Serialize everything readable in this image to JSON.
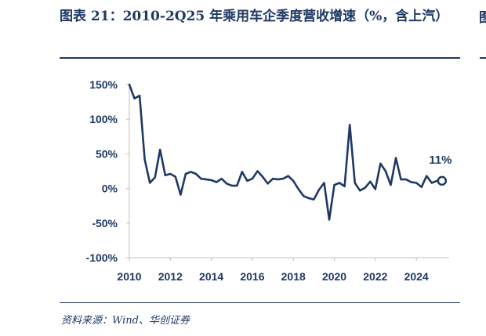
{
  "header": {
    "title": "图表 21：2010-2Q25 年乘用车企季度营收增速（%，含上汽）",
    "source": "资料来源：Wind、华创证券",
    "next_panel_title_fragment": "图"
  },
  "colors": {
    "accent": "#1f3864",
    "background": "#ffffff"
  },
  "chart_data": {
    "type": "line",
    "title": "",
    "xlabel": "",
    "ylabel": "",
    "xlim": [
      2010,
      2025.6
    ],
    "ylim": [
      -100,
      150
    ],
    "x_ticks": [
      2010,
      2012,
      2014,
      2016,
      2018,
      2020,
      2022,
      2024
    ],
    "x_tick_labels": [
      "2010",
      "2012",
      "2014",
      "2016",
      "2018",
      "2020",
      "2022",
      "2024"
    ],
    "y_ticks": [
      150,
      100,
      50,
      0,
      -50,
      -100
    ],
    "y_tick_labels": [
      "150%",
      "100%",
      "50%",
      "0%",
      "-50%",
      "-100%"
    ],
    "grid": false,
    "legend": "none",
    "series": [
      {
        "x": [
          "2010Q1",
          "2010Q2",
          "2010Q3",
          "2010Q4",
          "2011Q1",
          "2011Q2",
          "2011Q3",
          "2011Q4",
          "2012Q1",
          "2012Q2",
          "2012Q3",
          "2012Q4",
          "2013Q1",
          "2013Q2",
          "2013Q3",
          "2013Q4",
          "2014Q1",
          "2014Q2",
          "2014Q3",
          "2014Q4",
          "2015Q1",
          "2015Q2",
          "2015Q3",
          "2015Q4",
          "2016Q1",
          "2016Q2",
          "2016Q3",
          "2016Q4",
          "2017Q1",
          "2017Q2",
          "2017Q3",
          "2017Q4",
          "2018Q1",
          "2018Q2",
          "2018Q3",
          "2018Q4",
          "2019Q1",
          "2019Q2",
          "2019Q3",
          "2019Q4",
          "2020Q1",
          "2020Q2",
          "2020Q3",
          "2020Q4",
          "2021Q1",
          "2021Q2",
          "2021Q3",
          "2021Q4",
          "2022Q1",
          "2022Q2",
          "2022Q3",
          "2022Q4",
          "2023Q1",
          "2023Q2",
          "2023Q3",
          "2023Q4",
          "2024Q1",
          "2024Q2",
          "2024Q3",
          "2024Q4",
          "2025Q1",
          "2025Q2"
        ],
        "values": [
          150,
          130,
          134,
          42,
          8,
          16,
          56,
          19,
          21,
          17,
          -9,
          21,
          24,
          21,
          14,
          13,
          12,
          9,
          14,
          7,
          4,
          4,
          24,
          11,
          14,
          25,
          17,
          7,
          14,
          13,
          14,
          18,
          11,
          -1,
          -11,
          -14,
          -16,
          -2,
          8,
          -45,
          5,
          8,
          3,
          92,
          8,
          -3,
          1,
          10,
          -1,
          36,
          25,
          5,
          44,
          13,
          13,
          9,
          8,
          2,
          18,
          8,
          11,
          11
        ]
      }
    ],
    "annotation": {
      "label": "11%",
      "point": "2025Q2"
    }
  }
}
